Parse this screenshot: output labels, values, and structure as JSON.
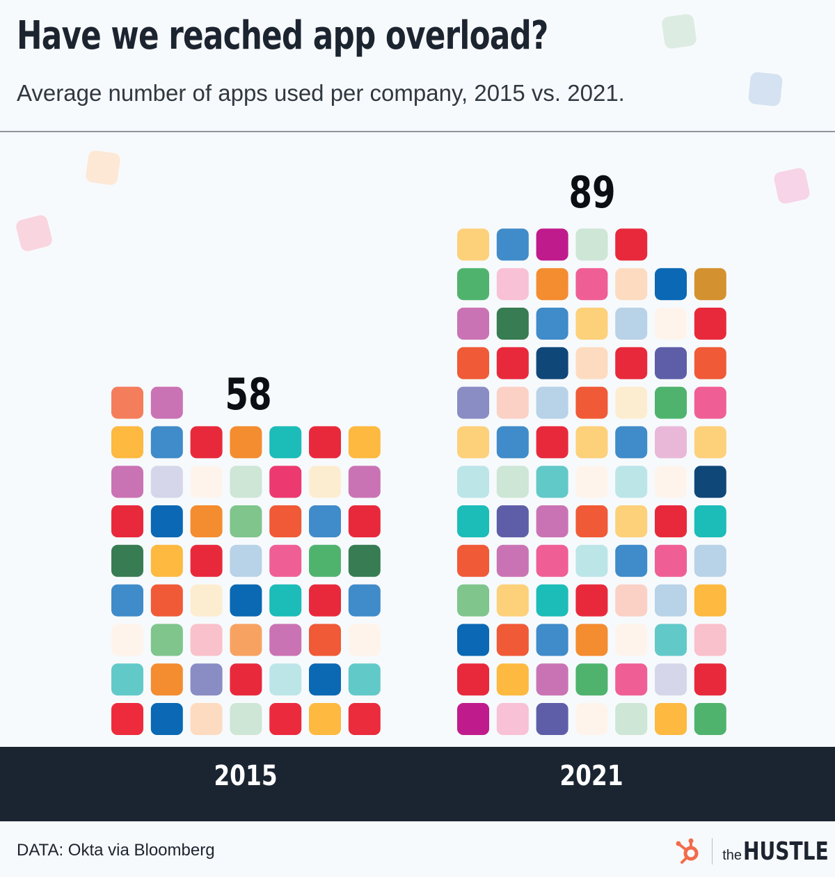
{
  "title": "Have we reached app overload?",
  "subtitle": "Average number of apps used per company, 2015 vs. 2021.",
  "source": "DATA: Okta via Bloomberg",
  "logo": {
    "prefix": "the",
    "name": "HUSTLE",
    "icon": "hubspot-sprocket-icon",
    "icon_color": "#f26b4a"
  },
  "colors": {
    "background": "#f7fafc",
    "axis_bar": "#1b2532",
    "axis_text": "#ffffff"
  },
  "chart_data": {
    "type": "bar",
    "chart_style": "unit pictogram (one rounded square per app)",
    "categories": [
      "2015",
      "2021"
    ],
    "values": [
      58,
      89
    ],
    "title": "Have we reached app overload?",
    "subtitle": "Average number of apps used per company, 2015 vs. 2021.",
    "xlabel": "",
    "ylabel": "",
    "data_labels": [
      "58",
      "89"
    ],
    "grid": false,
    "legend": "none",
    "unit_colors": {
      "2015": [
        "#ed2b3c",
        "#0a68b4",
        "#fddbc0",
        "#cde6d6",
        "#ec2a3d",
        "#fdb940",
        "#ea2c3d",
        "#62c9c9",
        "#f48c30",
        "#8a8cc4",
        "#e8293c",
        "#bce5e8",
        "#0b68b3",
        "#62c9c9",
        "#fff4ec",
        "#7fc58c",
        "#f9c1cb",
        "#f8a262",
        "#ca73b4",
        "#f05a37",
        "#fff4ec",
        "#408bc9",
        "#f05a37",
        "#fdedd0",
        "#0b68b3",
        "#1cbcb8",
        "#e8293c",
        "#408bc9",
        "#377c52",
        "#fdb940",
        "#e8293c",
        "#b8d2e8",
        "#ef5f95",
        "#4fb36e",
        "#377c52",
        "#e8293c",
        "#0a68b4",
        "#f48c30",
        "#7fc58c",
        "#f05a37",
        "#408bc9",
        "#e8293c",
        "#ca73b4",
        "#d6d6ea",
        "#fff4ec",
        "#cde6d6",
        "#ec3a70",
        "#fdedd0",
        "#ca73b4",
        "#fdb940",
        "#408bc9",
        "#e8293c",
        "#f48c30",
        "#1cbcb8",
        "#e8293c",
        "#fdb940",
        "#f47d5c",
        "#ca73b4"
      ],
      "2021": [
        "#c01b8c",
        "#f9c1d6",
        "#5e5ea8",
        "#fff4ec",
        "#cde6d6",
        "#fdb940",
        "#4fb36e",
        "#e8293c",
        "#fdb940",
        "#ca73b4",
        "#4fb36e",
        "#ef5f95",
        "#d6d6ea",
        "#e8293c",
        "#0a68b4",
        "#f05a37",
        "#408bc9",
        "#f48c30",
        "#fff4ec",
        "#62c9c9",
        "#f9c1cb",
        "#7fc58c",
        "#fdd07a",
        "#1cbcb8",
        "#e8293c",
        "#fbd1c6",
        "#b8d2e8",
        "#fdb940",
        "#f05a37",
        "#ca73b4",
        "#ef5f95",
        "#bce5e8",
        "#408bc9",
        "#ef5f95",
        "#b8d2e8",
        "#1cbcb8",
        "#5e5ea8",
        "#ca73b4",
        "#f05a37",
        "#fdd07a",
        "#e8293c",
        "#1cbcb8",
        "#bce5e8",
        "#cde6d6",
        "#62c9c9",
        "#fff4ec",
        "#bce5e8",
        "#fff4ec",
        "#104779",
        "#fdd07a",
        "#408bc9",
        "#e8293c",
        "#fdd07a",
        "#408bc9",
        "#e9b8d8",
        "#fdd07a",
        "#8a8cc4",
        "#fbd1c6",
        "#b8d2e8",
        "#f05a37",
        "#fdedd0",
        "#4fb36e",
        "#ef5f95",
        "#f05a37",
        "#e8293c",
        "#104779",
        "#fddbc0",
        "#e8293c",
        "#5e5ea8",
        "#f05a37",
        "#ca73b4",
        "#377c52",
        "#408bc9",
        "#fdd07a",
        "#b8d2e8",
        "#fff4ec",
        "#e8293c",
        "#4fb36e",
        "#f9c1d6",
        "#f48c30",
        "#ef5f95",
        "#fddbc0",
        "#0a68b4",
        "#d4912f",
        "#fdd07a",
        "#408bc9",
        "#c01b8c",
        "#cde6d6",
        "#e8293c"
      ]
    }
  }
}
